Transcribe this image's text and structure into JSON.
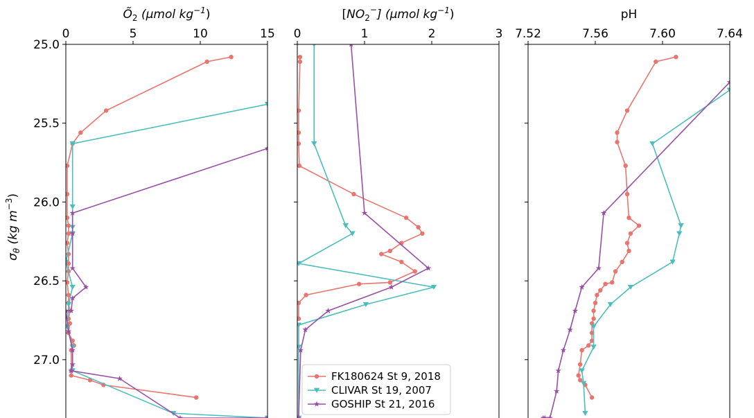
{
  "chart_data": {
    "type": "line",
    "y_axis": {
      "label_base": "σ",
      "label_sub": "θ",
      "label_units": "(kg m",
      "label_exp": "−3",
      "label_close": ")",
      "range": [
        25.0,
        27.37
      ],
      "inverted": true,
      "ticks": [
        "25.0",
        "25.5",
        "26.0",
        "26.5",
        "27.0"
      ],
      "tick_values": [
        25.0,
        25.5,
        26.0,
        26.5,
        27.0
      ]
    },
    "panels": [
      {
        "id": "o2",
        "xlabel_main": "Õ",
        "xlabel_sub": "2",
        "xlabel_units": " (μmol kg",
        "xlabel_exp": "−1",
        "xlabel_close": ")",
        "xlim": [
          0,
          15
        ],
        "xticks": [
          "0",
          "5",
          "10",
          "15"
        ],
        "xtick_values": [
          0,
          5,
          10,
          15
        ],
        "series": [
          {
            "key": "fk",
            "x": [
              12.3,
              10.5,
              3.0,
              1.1,
              0.5,
              0.1,
              0.1,
              0.1,
              0.2,
              0.2,
              0.1,
              0.2,
              0.2,
              0.2,
              0.1,
              0.2,
              0.2,
              0.3,
              0.2,
              0.3,
              0.2,
              0.5,
              0.6,
              0.4,
              0.4,
              0.4,
              1.8,
              2.8,
              9.7
            ],
            "y": [
              25.08,
              25.11,
              25.42,
              25.56,
              25.63,
              25.77,
              25.95,
              26.1,
              26.15,
              26.2,
              26.26,
              26.33,
              26.39,
              26.44,
              26.51,
              26.59,
              26.64,
              26.69,
              26.74,
              26.77,
              26.83,
              26.88,
              26.91,
              26.94,
              27.07,
              27.1,
              27.13,
              27.16,
              27.24
            ]
          },
          {
            "key": "clivar",
            "x": [
              15.0,
              0.5,
              0.5,
              0.5,
              0.5,
              0.0,
              0.5,
              0.2,
              0.1,
              0.5,
              0.5,
              8.0,
              15.0
            ],
            "y": [
              25.38,
              25.63,
              26.03,
              26.16,
              26.2,
              26.38,
              26.54,
              26.65,
              26.79,
              26.92,
              27.07,
              27.34,
              27.37
            ]
          },
          {
            "key": "goship",
            "x": [
              15.0,
              0.5,
              0.5,
              0.5,
              1.5,
              0.5,
              0.4,
              0.0,
              0.2,
              0.5,
              0.5,
              0.4,
              4.0,
              8.5,
              15.0
            ],
            "y": [
              25.66,
              26.07,
              26.2,
              26.42,
              26.54,
              26.61,
              26.69,
              26.69,
              26.82,
              26.94,
              27.03,
              27.07,
              27.12,
              27.37,
              27.37
            ]
          }
        ]
      },
      {
        "id": "no2",
        "xlabel_pre": "[",
        "xlabel_main": "NO",
        "xlabel_sub": "2",
        "xlabel_sup": "−",
        "xlabel_units": "] (μmol kg",
        "xlabel_exp": "−1",
        "xlabel_close": ")",
        "xlim": [
          0,
          3
        ],
        "xticks": [
          "0",
          "1",
          "2",
          "3"
        ],
        "xtick_values": [
          0,
          1,
          2,
          3
        ],
        "series": [
          {
            "key": "fk",
            "x": [
              0.04,
              0.04,
              0.02,
              0.02,
              0.02,
              0.03,
              0.84,
              1.62,
              1.8,
              1.86,
              1.55,
              1.38,
              1.25,
              1.55,
              1.75,
              1.38,
              0.92,
              0.13,
              0.02,
              0.02
            ],
            "y": [
              25.08,
              25.11,
              25.42,
              25.56,
              25.63,
              25.77,
              25.95,
              26.1,
              26.16,
              26.2,
              26.26,
              26.31,
              26.33,
              26.38,
              26.44,
              26.51,
              26.52,
              26.59,
              26.64,
              26.74
            ]
          },
          {
            "key": "clivar",
            "x": [
              0.25,
              0.25,
              0.72,
              0.82,
              0.02,
              2.03,
              1.02,
              0.02,
              0.02,
              0.02
            ],
            "y": [
              25.0,
              25.63,
              26.15,
              26.2,
              26.39,
              26.54,
              26.65,
              26.78,
              26.92,
              27.37
            ]
          },
          {
            "key": "goship",
            "x": [
              0.8,
              1.0,
              1.95,
              1.4,
              0.46,
              0.12,
              0.05,
              0.02
            ],
            "y": [
              25.0,
              26.07,
              26.42,
              26.54,
              26.69,
              26.81,
              26.94,
              27.37
            ]
          }
        ]
      },
      {
        "id": "ph",
        "xlabel_main": "pH",
        "xlim": [
          7.52,
          7.64
        ],
        "xticks": [
          "7.52",
          "7.56",
          "7.60",
          "7.64"
        ],
        "xtick_values": [
          7.52,
          7.56,
          7.6,
          7.64
        ],
        "series": [
          {
            "key": "fk",
            "x": [
              7.608,
              7.596,
              7.579,
              7.573,
              7.573,
              7.578,
              7.579,
              7.58,
              7.586,
              7.581,
              7.579,
              7.58,
              7.576,
              7.572,
              7.57,
              7.566,
              7.563,
              7.561,
              7.56,
              7.559,
              7.559,
              7.558,
              7.558,
              7.558,
              7.556,
              7.552,
              7.551,
              7.55,
              7.551,
              7.554,
              7.558
            ],
            "y": [
              25.08,
              25.11,
              25.42,
              25.56,
              25.62,
              25.77,
              25.95,
              26.1,
              26.15,
              26.2,
              26.26,
              26.31,
              26.38,
              26.44,
              26.51,
              26.52,
              26.56,
              26.59,
              26.64,
              26.69,
              26.74,
              26.77,
              26.83,
              26.88,
              26.91,
              26.94,
              27.03,
              27.1,
              27.13,
              27.16,
              27.24
            ]
          },
          {
            "key": "clivar",
            "x": [
              7.64,
              7.594,
              7.611,
              7.61,
              7.606,
              7.581,
              7.569,
              7.559,
              7.559,
              7.552,
              7.553,
              7.554
            ],
            "y": [
              25.29,
              25.63,
              26.15,
              26.2,
              26.38,
              26.54,
              26.65,
              26.79,
              26.92,
              27.07,
              27.15,
              27.34
            ]
          },
          {
            "key": "goship",
            "x": [
              7.64,
              7.565,
              7.562,
              7.552,
              7.548,
              7.545,
              7.541,
              7.538,
              7.537,
              7.533,
              7.529,
              7.53
            ],
            "y": [
              25.24,
              26.07,
              26.42,
              26.54,
              26.69,
              26.81,
              26.94,
              27.07,
              27.2,
              27.37,
              27.37,
              27.37
            ]
          }
        ]
      }
    ],
    "series_defs": [
      {
        "key": "fk",
        "name": "FK180624 St 9, 2018",
        "color": "#e8756e",
        "marker": "circle"
      },
      {
        "key": "clivar",
        "name": "CLIVAR St 19, 2007",
        "color": "#4cbdbd",
        "marker": "triangle-down"
      },
      {
        "key": "goship",
        "name": "GOSHIP St 21, 2016",
        "color": "#9850a6",
        "marker": "star"
      }
    ],
    "legend": {
      "placement": "lower-left",
      "panel": "no2"
    }
  }
}
